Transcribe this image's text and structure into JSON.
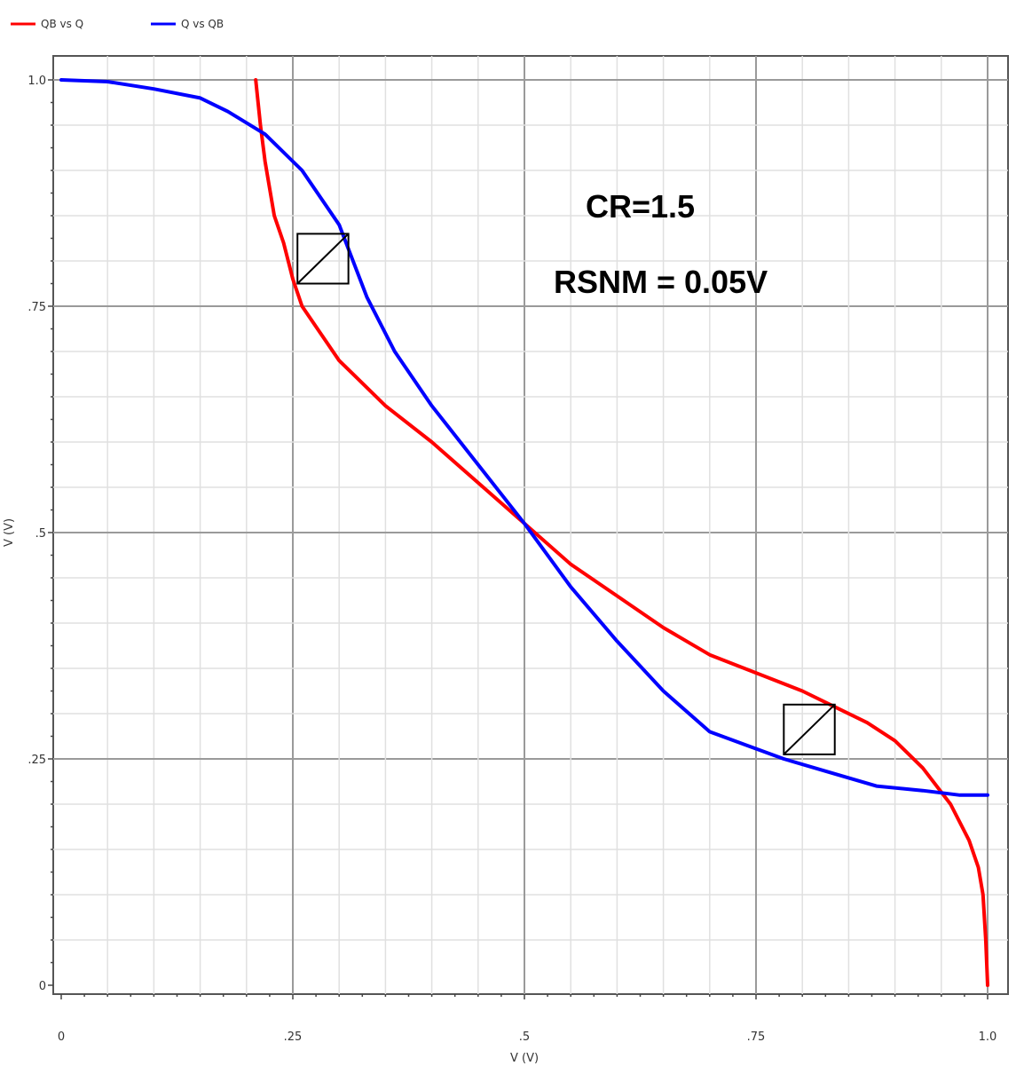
{
  "chart_data": {
    "type": "line",
    "xlabel": "V (V)",
    "ylabel": "V (V)",
    "xlim": [
      0,
      1.0
    ],
    "ylim": [
      0,
      1.0
    ],
    "x_ticks": [
      "0",
      ".25",
      ".5",
      ".75",
      "1.0"
    ],
    "y_ticks": [
      "0",
      ".25",
      ".5",
      ".75",
      "1.0"
    ],
    "grid": true,
    "legend_position": "top-left",
    "series": [
      {
        "name": "QB vs Q",
        "color": "#ff0000",
        "x": [
          0.21,
          0.215,
          0.22,
          0.225,
          0.23,
          0.24,
          0.25,
          0.26,
          0.28,
          0.3,
          0.32,
          0.35,
          0.4,
          0.45,
          0.5,
          0.55,
          0.6,
          0.65,
          0.7,
          0.75,
          0.8,
          0.83,
          0.87,
          0.9,
          0.93,
          0.96,
          0.98,
          0.99,
          0.995,
          0.998,
          1.0
        ],
        "y": [
          1.0,
          0.95,
          0.91,
          0.88,
          0.85,
          0.82,
          0.78,
          0.75,
          0.72,
          0.69,
          0.67,
          0.64,
          0.6,
          0.555,
          0.51,
          0.465,
          0.43,
          0.395,
          0.365,
          0.345,
          0.325,
          0.31,
          0.29,
          0.27,
          0.24,
          0.2,
          0.16,
          0.13,
          0.1,
          0.05,
          0.0
        ]
      },
      {
        "name": "Q vs QB",
        "color": "#0000ff",
        "x": [
          0.0,
          0.05,
          0.1,
          0.15,
          0.18,
          0.22,
          0.26,
          0.3,
          0.33,
          0.36,
          0.4,
          0.45,
          0.5,
          0.55,
          0.6,
          0.65,
          0.7,
          0.74,
          0.78,
          0.83,
          0.88,
          0.93,
          0.97,
          1.0
        ],
        "y": [
          1.0,
          0.998,
          0.99,
          0.98,
          0.965,
          0.94,
          0.9,
          0.84,
          0.76,
          0.7,
          0.64,
          0.575,
          0.51,
          0.44,
          0.38,
          0.325,
          0.28,
          0.265,
          0.25,
          0.235,
          0.22,
          0.215,
          0.21,
          0.21
        ]
      }
    ],
    "annotations": [
      "CR=1.5",
      "RSNM = 0.05V"
    ],
    "snm_squares": [
      {
        "x0": 0.255,
        "y0": 0.775,
        "x1": 0.31,
        "y1": 0.83
      },
      {
        "x0": 0.78,
        "y0": 0.255,
        "x1": 0.835,
        "y1": 0.31
      }
    ]
  }
}
